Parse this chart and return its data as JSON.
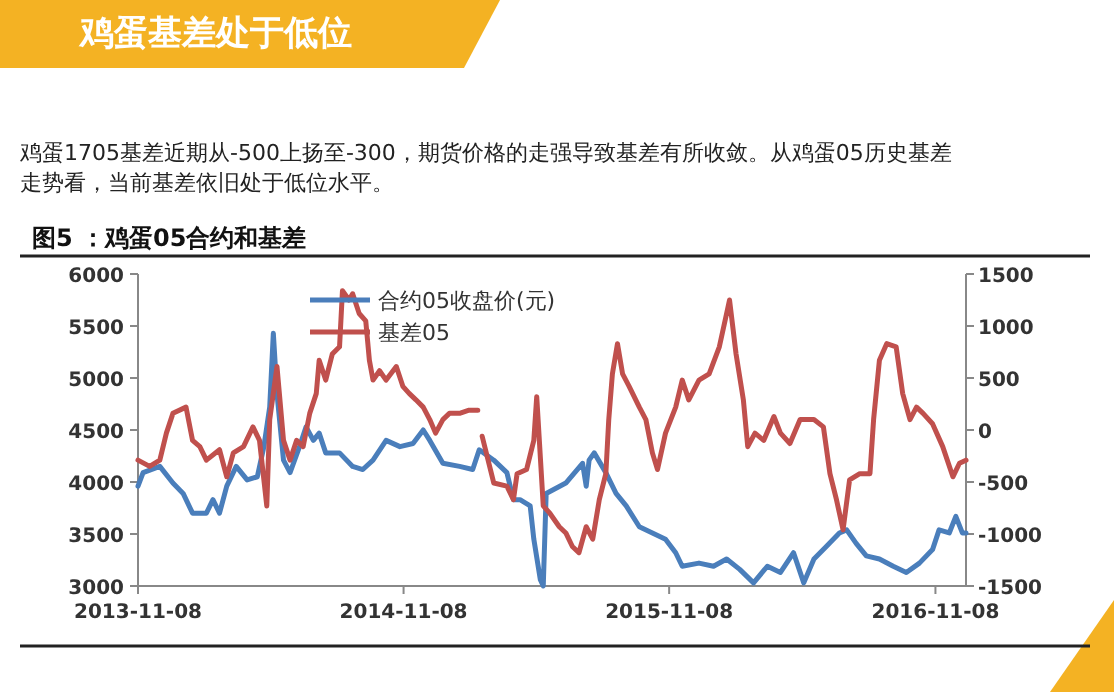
{
  "chart_data": {
    "type": "line",
    "title": "鸡蛋基差处于低位",
    "subtitle": "鸡蛋1705基差近期从-500上扬至-300，期货价格的走强导致基差有所收敛。从鸡蛋05历史基差走势看，当前基差依旧处于低位水平。",
    "annotations": [
      "图5 ：鸡蛋05合约和基差"
    ],
    "xlim": [
      "2013-11-08",
      "2016-12-20"
    ],
    "xticks": [
      "2013-11-08",
      "2014-11-08",
      "2015-11-08",
      "2016-11-08"
    ],
    "ylim": [
      3000,
      6000
    ],
    "yticks": [
      3000,
      3500,
      4000,
      4500,
      5000,
      5500,
      6000
    ],
    "y2lim": [
      -1500,
      1500
    ],
    "y2ticks": [
      -1500,
      -1000,
      -500,
      0,
      500,
      1000,
      1500
    ],
    "grid": false,
    "legend": "top",
    "marker": "none",
    "line_style": "solid",
    "series": [
      {
        "name": "合约05收盘价(元)",
        "color": "#4a7ebb",
        "x": [
          "2013-11-08",
          "2013-11-15",
          "2013-12-08",
          "2013-12-26",
          "2014-01-09",
          "2014-01-22",
          "2014-02-10",
          "2014-02-19",
          "2014-02-28",
          "2014-03-10",
          "2014-03-23",
          "2014-04-07",
          "2014-04-21",
          "2014-04-30",
          "2014-05-08",
          "2014-05-13",
          "2014-05-18",
          "2014-05-27",
          "2014-06-05",
          "2014-06-18",
          "2014-06-27",
          "2014-07-07",
          "2014-07-15",
          "2014-07-24",
          "2014-08-12",
          "2014-08-30",
          "2014-09-13",
          "2014-09-27",
          "2014-10-15",
          "2014-11-03",
          "2014-11-21",
          "2014-12-05",
          "2014-12-14",
          "2015-01-01",
          "2015-01-24",
          "2015-02-11",
          "2015-02-20",
          "2015-03-12",
          "2015-03-30",
          "2015-04-08",
          "2015-04-17",
          "2015-05-01",
          "2015-05-06",
          "2015-05-15",
          "2015-05-19",
          "2015-05-23",
          "2015-06-19",
          "2015-07-12",
          "2015-07-17",
          "2015-07-21",
          "2015-07-28",
          "2015-08-13",
          "2015-08-27",
          "2015-09-10",
          "2015-09-28",
          "2015-10-16",
          "2015-11-03",
          "2015-11-17",
          "2015-11-26",
          "2015-12-19",
          "2016-01-08",
          "2016-01-26",
          "2016-02-13",
          "2016-03-03",
          "2016-03-22",
          "2016-04-09",
          "2016-04-27",
          "2016-05-11",
          "2016-05-25",
          "2016-06-11",
          "2016-06-29",
          "2016-07-09",
          "2016-07-22",
          "2016-08-05",
          "2016-08-23",
          "2016-09-11",
          "2016-09-29",
          "2016-10-17",
          "2016-11-04",
          "2016-11-13",
          "2016-11-27",
          "2016-12-06",
          "2016-12-15",
          "2016-12-20"
        ],
        "values": [
          3960,
          4090,
          4150,
          3990,
          3890,
          3700,
          3700,
          3830,
          3700,
          3960,
          4150,
          4020,
          4050,
          4340,
          4720,
          5430,
          4850,
          4210,
          4090,
          4340,
          4530,
          4400,
          4470,
          4280,
          4280,
          4150,
          4120,
          4210,
          4400,
          4340,
          4370,
          4500,
          4400,
          4180,
          4150,
          4120,
          4310,
          4210,
          4090,
          3830,
          3830,
          3770,
          3450,
          3060,
          3000,
          3890,
          3990,
          4180,
          3960,
          4210,
          4280,
          4090,
          3890,
          3770,
          3570,
          3510,
          3450,
          3320,
          3190,
          3220,
          3190,
          3260,
          3160,
          3030,
          3190,
          3130,
          3320,
          3030,
          3260,
          3380,
          3510,
          3540,
          3410,
          3290,
          3260,
          3190,
          3130,
          3220,
          3350,
          3540,
          3510,
          3670,
          3510,
          3510
        ]
      },
      {
        "name": "基差05",
        "color": "#c0504d",
        "axis": "y2",
        "x": [
          "2013-11-08",
          "2013-11-24",
          "2013-12-08",
          "2013-12-17",
          "2013-12-26",
          "2014-01-13",
          "2014-01-22",
          "2014-02-01",
          "2014-02-10",
          "2014-02-28",
          "2014-03-10",
          "2014-03-19",
          "2014-04-02",
          "2014-04-15",
          "2014-04-24",
          "2014-05-04",
          "2014-05-08",
          "2014-05-18",
          "2014-05-27",
          "2014-06-05",
          "2014-06-14",
          "2014-06-23",
          "2014-07-02",
          "2014-07-11",
          "2014-07-15",
          "2014-07-24",
          "2014-08-02",
          "2014-08-12",
          "2014-08-16",
          "2014-08-25",
          "2014-08-30",
          "2014-09-08",
          "2014-09-17",
          "2014-09-22",
          "2014-09-27",
          "2014-10-06",
          "2014-10-15",
          "2014-10-29",
          "2014-11-07",
          "2014-11-16",
          "2014-11-25",
          "2014-12-05",
          "2014-12-14",
          "2014-12-22",
          "2015-01-01",
          "2015-01-10",
          "2015-01-24",
          "2015-02-06",
          "2015-02-18",
          "2015-02-21",
          "2015-02-24",
          "2015-03-12",
          "2015-03-30",
          "2015-04-08",
          "2015-04-13",
          "2015-04-26",
          "2015-05-06",
          "2015-05-10",
          "2015-05-19",
          "2015-05-28",
          "2015-06-10",
          "2015-06-19",
          "2015-06-28",
          "2015-07-07",
          "2015-07-17",
          "2015-07-26",
          "2015-08-04",
          "2015-08-13",
          "2015-08-17",
          "2015-08-22",
          "2015-08-29",
          "2015-09-05",
          "2015-09-14",
          "2015-09-28",
          "2015-10-07",
          "2015-10-16",
          "2015-10-23",
          "2015-11-03",
          "2015-11-17",
          "2015-11-26",
          "2015-12-05",
          "2015-12-19",
          "2016-01-02",
          "2016-01-16",
          "2016-01-26",
          "2016-01-30",
          "2016-02-08",
          "2016-02-18",
          "2016-02-24",
          "2016-03-05",
          "2016-03-17",
          "2016-03-31",
          "2016-04-09",
          "2016-04-22",
          "2016-05-06",
          "2016-05-25",
          "2016-06-07",
          "2016-06-16",
          "2016-06-25",
          "2016-07-04",
          "2016-07-13",
          "2016-07-27",
          "2016-08-10",
          "2016-08-15",
          "2016-08-23",
          "2016-09-02",
          "2016-09-15",
          "2016-09-24",
          "2016-10-04",
          "2016-10-13",
          "2016-10-22",
          "2016-11-04",
          "2016-11-18",
          "2016-12-02",
          "2016-12-11",
          "2016-12-20"
        ],
        "values": [
          -290,
          -350,
          -290,
          -30,
          160,
          220,
          -100,
          -160,
          -290,
          -190,
          -450,
          -220,
          -160,
          30,
          -100,
          -730,
          100,
          610,
          -100,
          -290,
          -100,
          -160,
          160,
          350,
          670,
          480,
          730,
          800,
          1340,
          1250,
          1310,
          1120,
          1050,
          670,
          480,
          570,
          480,
          610,
          420,
          350,
          290,
          220,
          100,
          -30,
          100,
          160,
          160,
          190,
          190,
          null,
          -60,
          -510,
          -540,
          -670,
          -420,
          -380,
          -100,
          320,
          -730,
          -800,
          -930,
          -990,
          -1120,
          -1180,
          -930,
          -1050,
          -670,
          -420,
          100,
          540,
          830,
          540,
          420,
          220,
          100,
          -220,
          -380,
          -30,
          220,
          480,
          290,
          480,
          540,
          800,
          1120,
          1250,
          730,
          290,
          -160,
          -30,
          -100,
          130,
          -30,
          -130,
          100,
          100,
          30,
          -420,
          -670,
          -960,
          -480,
          -420,
          -420,
          100,
          670,
          830,
          800,
          350,
          100,
          220,
          160,
          60,
          -160,
          -450,
          -320,
          -290
        ]
      }
    ]
  }
}
